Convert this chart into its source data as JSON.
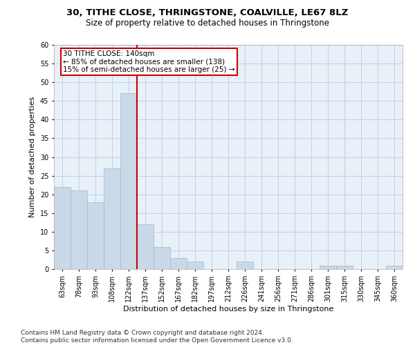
{
  "title_line1": "30, TITHE CLOSE, THRINGSTONE, COALVILLE, LE67 8LZ",
  "title_line2": "Size of property relative to detached houses in Thringstone",
  "xlabel": "Distribution of detached houses by size in Thringstone",
  "ylabel": "Number of detached properties",
  "categories": [
    "63sqm",
    "78sqm",
    "93sqm",
    "108sqm",
    "122sqm",
    "137sqm",
    "152sqm",
    "167sqm",
    "182sqm",
    "197sqm",
    "212sqm",
    "226sqm",
    "241sqm",
    "256sqm",
    "271sqm",
    "286sqm",
    "301sqm",
    "315sqm",
    "330sqm",
    "345sqm",
    "360sqm"
  ],
  "values": [
    22,
    21,
    18,
    27,
    47,
    12,
    6,
    3,
    2,
    0,
    0,
    2,
    0,
    0,
    0,
    0,
    1,
    1,
    0,
    0,
    1
  ],
  "bar_color": "#c9d9e8",
  "bar_edge_color": "#a0b8cc",
  "vline_x": 4.5,
  "vline_color": "#cc0000",
  "annotation_text": "30 TITHE CLOSE: 140sqm\n← 85% of detached houses are smaller (138)\n15% of semi-detached houses are larger (25) →",
  "annotation_box_color": "white",
  "annotation_box_edge": "#cc0000",
  "ylim": [
    0,
    60
  ],
  "yticks": [
    0,
    5,
    10,
    15,
    20,
    25,
    30,
    35,
    40,
    45,
    50,
    55,
    60
  ],
  "grid_color": "#b0c4de",
  "background_color": "#e8f0f8",
  "footer": "Contains HM Land Registry data © Crown copyright and database right 2024.\nContains public sector information licensed under the Open Government Licence v3.0.",
  "title_fontsize": 9.5,
  "subtitle_fontsize": 8.5,
  "axis_label_fontsize": 8,
  "tick_fontsize": 7,
  "footer_fontsize": 6.5,
  "annotation_fontsize": 7.5
}
